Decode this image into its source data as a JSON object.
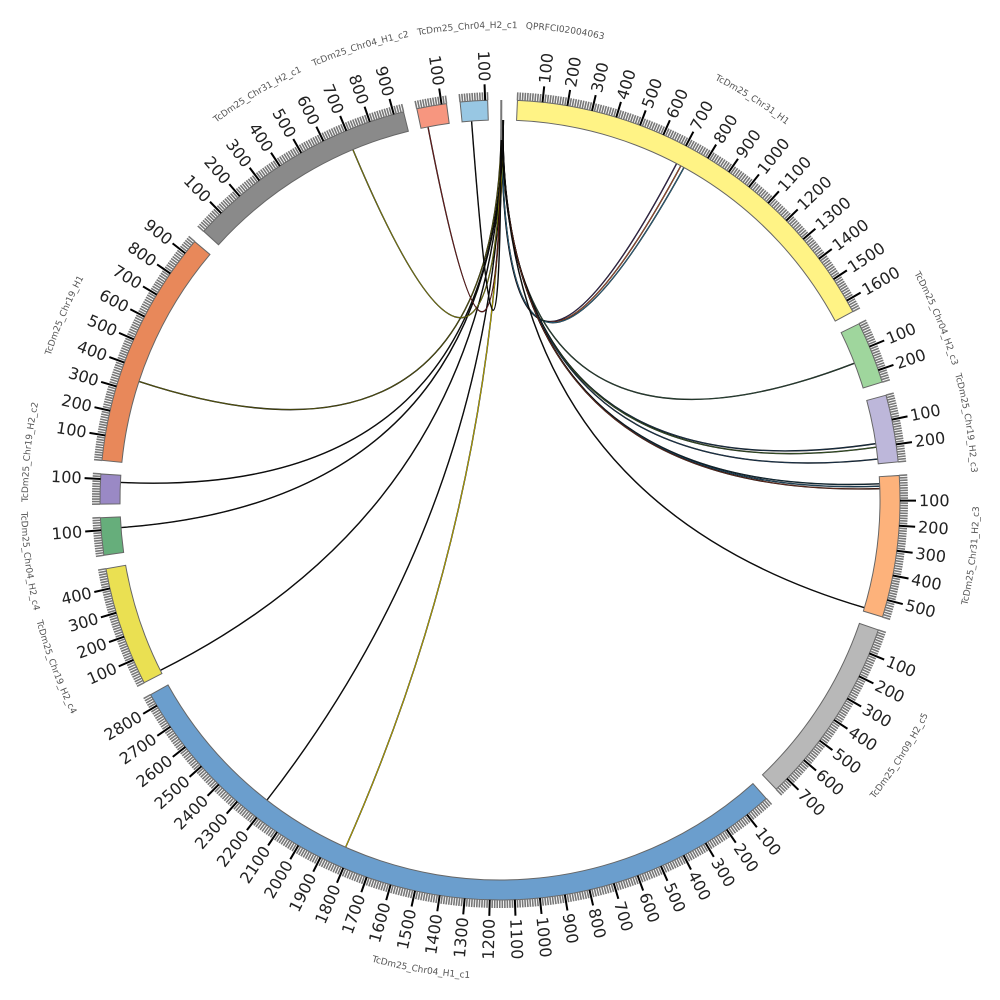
{
  "chart_data": {
    "type": "chord",
    "title": "",
    "tick_interval": 100,
    "segments": [
      {
        "name": "TcDm25_Chr31_H1",
        "length": 1650,
        "color": "#FFF385"
      },
      {
        "name": "TcDm25_Chr04_H2_c3",
        "length": 250,
        "color": "#9FD69D"
      },
      {
        "name": "TcDm25_Chr19_H2_c3",
        "length": 270,
        "color": "#BDB7DA"
      },
      {
        "name": "TcDm25_Chr31_H2_c3",
        "length": 570,
        "color": "#FDB27B"
      },
      {
        "name": "TcDm25_Chr09_H2_c5",
        "length": 760,
        "color": "#B8B8B8"
      },
      {
        "name": "TcDm25_Chr04_H1_c1",
        "length": 2850,
        "color": "#6B9ECD"
      },
      {
        "name": "TcDm25_Chr19_H2_c4",
        "length": 480,
        "color": "#EAE052"
      },
      {
        "name": "TcDm25_Chr04_H2_c4",
        "length": 150,
        "color": "#66AE7B"
      },
      {
        "name": "TcDm25_Chr19_H2_c2",
        "length": 120,
        "color": "#9A89C5"
      },
      {
        "name": "TcDm25_Chr19_H1",
        "length": 960,
        "color": "#E8885A"
      },
      {
        "name": "TcDm25_Chr31_H2_c1",
        "length": 940,
        "color": "#8A8A8A"
      },
      {
        "name": "TcDm25_Chr04_H1_c2",
        "length": 120,
        "color": "#F7967F"
      },
      {
        "name": "TcDm25_Chr04_H2_c1",
        "length": 110,
        "color": "#98C7E3"
      },
      {
        "name": "QPRFCI02004063",
        "length": 10,
        "color": "#777777"
      }
    ],
    "links": [
      {
        "source": [
          13,
          2
        ],
        "target": [
          0,
          700
        ],
        "color": "#3b2a5a"
      },
      {
        "source": [
          13,
          3
        ],
        "target": [
          0,
          720
        ],
        "color": "#b5562f"
      },
      {
        "source": [
          13,
          3
        ],
        "target": [
          0,
          735
        ],
        "color": "#2f6f8f"
      },
      {
        "source": [
          13,
          4
        ],
        "target": [
          1,
          140
        ],
        "color": "#2e4b3a"
      },
      {
        "source": [
          13,
          5
        ],
        "target": [
          2,
          185
        ],
        "color": "#1f3b55"
      },
      {
        "source": [
          13,
          5
        ],
        "target": [
          2,
          200
        ],
        "color": "#3c5a2a"
      },
      {
        "source": [
          13,
          6
        ],
        "target": [
          2,
          250
        ],
        "color": "#1f3b55"
      },
      {
        "source": [
          13,
          6
        ],
        "target": [
          3,
          30
        ],
        "color": "#12303f"
      },
      {
        "source": [
          13,
          6
        ],
        "target": [
          3,
          40
        ],
        "color": "#234f6a"
      },
      {
        "source": [
          13,
          7
        ],
        "target": [
          3,
          50
        ],
        "color": "#6b2e1f"
      },
      {
        "source": [
          13,
          7
        ],
        "target": [
          3,
          555
        ],
        "color": "#111111"
      },
      {
        "source": [
          13,
          8
        ],
        "target": [
          5,
          2210
        ],
        "color": "#111111"
      },
      {
        "source": [
          13,
          8
        ],
        "target": [
          5,
          1825
        ],
        "color": "#c9b800"
      },
      {
        "source": [
          13,
          9
        ],
        "target": [
          6,
          15
        ],
        "color": "#111111"
      },
      {
        "source": [
          13,
          9
        ],
        "target": [
          7,
          105
        ],
        "color": "#111111"
      },
      {
        "source": [
          13,
          9
        ],
        "target": [
          8,
          90
        ],
        "color": "#111111"
      },
      {
        "source": [
          13,
          1
        ],
        "target": [
          9,
          347
        ],
        "color": "#5a5a10"
      },
      {
        "source": [
          13,
          1
        ],
        "target": [
          10,
          695
        ],
        "color": "#8a8a10"
      },
      {
        "source": [
          13,
          0
        ],
        "target": [
          11,
          30
        ],
        "color": "#7a2020"
      },
      {
        "source": [
          13,
          0
        ],
        "target": [
          12,
          40
        ],
        "color": "#111111"
      }
    ]
  }
}
